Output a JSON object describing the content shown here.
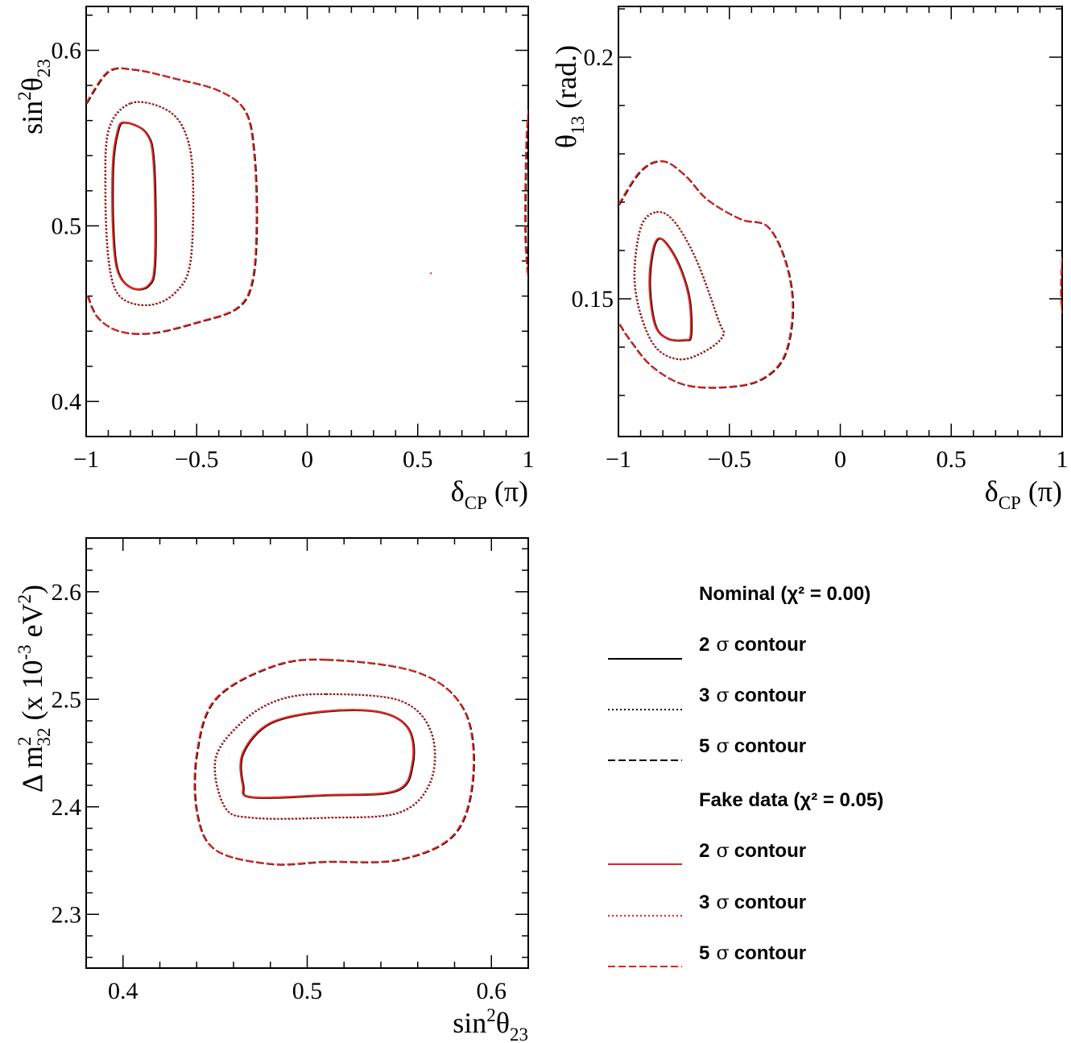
{
  "chart_data": [
    {
      "type": "contour",
      "panel": "top-left",
      "xlim": [
        -1,
        1
      ],
      "ylim": [
        0.38,
        0.625
      ],
      "x_ticks": [
        -1,
        -0.5,
        0,
        0.5,
        1
      ],
      "x_tick_labels": [
        "−1",
        "−0.5",
        "0",
        "0.5",
        "1"
      ],
      "y_ticks": [
        0.4,
        0.5,
        0.6
      ],
      "y_tick_labels": [
        "0.4",
        "0.5",
        "0.6"
      ],
      "xlabel": "δ",
      "xlabel_sub": "CP",
      "xlabel_tail": " (π)",
      "ylabel": "sin",
      "ylabel_sup": "2",
      "ylabel_theta": "θ",
      "ylabel_sub": "23",
      "contours": [
        {
          "level": "2 sigma",
          "points": [
            [
              -0.83,
              0.559
            ],
            [
              -0.73,
              0.553
            ],
            [
              -0.695,
              0.535
            ],
            [
              -0.69,
              0.48
            ],
            [
              -0.72,
              0.466
            ],
            [
              -0.8,
              0.465
            ],
            [
              -0.86,
              0.475
            ],
            [
              -0.88,
              0.5
            ],
            [
              -0.88,
              0.535
            ],
            [
              -0.86,
              0.553
            ]
          ]
        },
        {
          "level": "3 sigma",
          "points": [
            [
              -0.8,
              0.57
            ],
            [
              -0.65,
              0.567
            ],
            [
              -0.56,
              0.555
            ],
            [
              -0.52,
              0.53
            ],
            [
              -0.53,
              0.48
            ],
            [
              -0.6,
              0.462
            ],
            [
              -0.72,
              0.455
            ],
            [
              -0.85,
              0.46
            ],
            [
              -0.9,
              0.48
            ],
            [
              -0.915,
              0.52
            ],
            [
              -0.9,
              0.555
            ]
          ]
        },
        {
          "level": "5 sigma",
          "points": [
            [
              -1.0,
              0.57
            ],
            [
              -0.9,
              0.588
            ],
            [
              -0.78,
              0.589
            ],
            [
              -0.6,
              0.584
            ],
            [
              -0.4,
              0.577
            ],
            [
              -0.28,
              0.565
            ],
            [
              -0.24,
              0.54
            ],
            [
              -0.23,
              0.5
            ],
            [
              -0.25,
              0.468
            ],
            [
              -0.32,
              0.453
            ],
            [
              -0.5,
              0.445
            ],
            [
              -0.7,
              0.439
            ],
            [
              -0.85,
              0.44
            ],
            [
              -0.95,
              0.448
            ],
            [
              -1.0,
              0.462
            ]
          ],
          "open": true
        },
        {
          "level": "5 sigma",
          "points": [
            [
              1.0,
              0.566
            ],
            [
              0.99,
              0.545
            ],
            [
              0.985,
              0.5
            ],
            [
              0.993,
              0.478
            ],
            [
              1.0,
              0.47
            ]
          ],
          "open": true
        }
      ],
      "marker": [
        0.56,
        0.473
      ]
    },
    {
      "type": "contour",
      "panel": "top-right",
      "xlim": [
        -1,
        1
      ],
      "ylim": [
        0.1215,
        0.2105
      ],
      "x_ticks": [
        -1,
        -0.5,
        0,
        0.5,
        1
      ],
      "x_tick_labels": [
        "−1",
        "−0.5",
        "0",
        "0.5",
        "1"
      ],
      "y_ticks": [
        0.15,
        0.2
      ],
      "y_tick_labels": [
        "0.15",
        "0.2"
      ],
      "xlabel": "δ",
      "xlabel_sub": "CP",
      "xlabel_tail": " (π)",
      "ylabel": "θ",
      "ylabel_sub": "13",
      "ylabel_tail": " (rad.)",
      "contours": [
        {
          "level": "2 sigma",
          "points": [
            [
              -0.82,
              0.1625
            ],
            [
              -0.77,
              0.1605
            ],
            [
              -0.715,
              0.1555
            ],
            [
              -0.68,
              0.1495
            ],
            [
              -0.675,
              0.1425
            ],
            [
              -0.7,
              0.1415
            ],
            [
              -0.78,
              0.1418
            ],
            [
              -0.835,
              0.1445
            ],
            [
              -0.86,
              0.152
            ],
            [
              -0.85,
              0.159
            ]
          ]
        },
        {
          "level": "3 sigma",
          "points": [
            [
              -0.83,
              0.168
            ],
            [
              -0.75,
              0.166
            ],
            [
              -0.65,
              0.158
            ],
            [
              -0.55,
              0.1455
            ],
            [
              -0.53,
              0.1425
            ],
            [
              -0.6,
              0.1395
            ],
            [
              -0.72,
              0.1375
            ],
            [
              -0.83,
              0.1398
            ],
            [
              -0.9,
              0.1465
            ],
            [
              -0.93,
              0.155
            ],
            [
              -0.9,
              0.165
            ]
          ]
        },
        {
          "level": "5 sigma",
          "points": [
            [
              -1.0,
              0.1695
            ],
            [
              -0.9,
              0.1765
            ],
            [
              -0.8,
              0.1785
            ],
            [
              -0.7,
              0.1755
            ],
            [
              -0.6,
              0.1705
            ],
            [
              -0.45,
              0.1665
            ],
            [
              -0.33,
              0.165
            ],
            [
              -0.25,
              0.158
            ],
            [
              -0.215,
              0.1485
            ],
            [
              -0.25,
              0.1385
            ],
            [
              -0.35,
              0.1335
            ],
            [
              -0.5,
              0.1318
            ],
            [
              -0.7,
              0.1322
            ],
            [
              -0.85,
              0.136
            ],
            [
              -0.95,
              0.1415
            ],
            [
              -1.0,
              0.145
            ]
          ],
          "open": true
        },
        {
          "level": "5 sigma",
          "points": [
            [
              1.0,
              0.1585
            ],
            [
              0.995,
              0.154
            ],
            [
              0.995,
              0.15
            ],
            [
              1.0,
              0.147
            ]
          ],
          "open": true
        }
      ]
    },
    {
      "type": "contour",
      "panel": "bottom-left",
      "xlim": [
        0.38,
        0.62
      ],
      "ylim": [
        2.25,
        2.65
      ],
      "x_ticks": [
        0.4,
        0.5,
        0.6
      ],
      "x_tick_labels": [
        "0.4",
        "0.5",
        "0.6"
      ],
      "y_ticks": [
        2.3,
        2.4,
        2.5,
        2.6
      ],
      "y_tick_labels": [
        "2.3",
        "2.4",
        "2.5",
        "2.6"
      ],
      "xlabel": "sin",
      "xlabel_sup": "2",
      "xlabel_theta": "θ",
      "xlabel_sub": "23",
      "ylabel": "Δ m",
      "ylabel_sup": "2",
      "ylabel_sub": "32",
      "ylabel_tail": " (x 10",
      "ylabel_sup2": "-3",
      "ylabel_tail2": " eV",
      "ylabel_sup3": "2",
      "ylabel_end": ")",
      "contours": [
        {
          "level": "2 sigma",
          "points": [
            [
              0.51,
              2.489
            ],
            [
              0.54,
              2.488
            ],
            [
              0.555,
              2.472
            ],
            [
              0.557,
              2.44
            ],
            [
              0.548,
              2.415
            ],
            [
              0.51,
              2.411
            ],
            [
              0.47,
              2.409
            ],
            [
              0.465,
              2.42
            ],
            [
              0.465,
              2.45
            ],
            [
              0.48,
              2.478
            ]
          ]
        },
        {
          "level": "3 sigma",
          "points": [
            [
              0.51,
              2.505
            ],
            [
              0.55,
              2.499
            ],
            [
              0.567,
              2.47
            ],
            [
              0.567,
              2.425
            ],
            [
              0.55,
              2.395
            ],
            [
              0.51,
              2.39
            ],
            [
              0.47,
              2.39
            ],
            [
              0.455,
              2.4
            ],
            [
              0.45,
              2.445
            ],
            [
              0.465,
              2.48
            ],
            [
              0.485,
              2.5
            ]
          ]
        },
        {
          "level": "5 sigma",
          "points": [
            [
              0.51,
              2.537
            ],
            [
              0.56,
              2.525
            ],
            [
              0.585,
              2.49
            ],
            [
              0.59,
              2.43
            ],
            [
              0.58,
              2.375
            ],
            [
              0.55,
              2.351
            ],
            [
              0.51,
              2.349
            ],
            [
              0.48,
              2.347
            ],
            [
              0.45,
              2.36
            ],
            [
              0.44,
              2.395
            ],
            [
              0.44,
              2.45
            ],
            [
              0.45,
              2.5
            ],
            [
              0.48,
              2.53
            ]
          ]
        }
      ]
    }
  ],
  "legend": {
    "groups": [
      {
        "header": "Nominal (χ² = 0.00)",
        "color": "#000000",
        "entries": [
          {
            "num": "2",
            "text": "contour",
            "style": "solid"
          },
          {
            "num": "3",
            "text": "contour",
            "style": "dotted"
          },
          {
            "num": "5",
            "text": "contour",
            "style": "dashed"
          }
        ]
      },
      {
        "header": "Fake data (χ² = 0.05)",
        "color": "#e8211d",
        "entries": [
          {
            "num": "2",
            "text": "contour",
            "style": "solid"
          },
          {
            "num": "3",
            "text": "contour",
            "style": "dotted"
          },
          {
            "num": "5",
            "text": "contour",
            "style": "dashed"
          }
        ]
      }
    ],
    "sigma_symbol": "σ"
  },
  "colors": {
    "nominal": "#000000",
    "fake": "#e8211d"
  }
}
